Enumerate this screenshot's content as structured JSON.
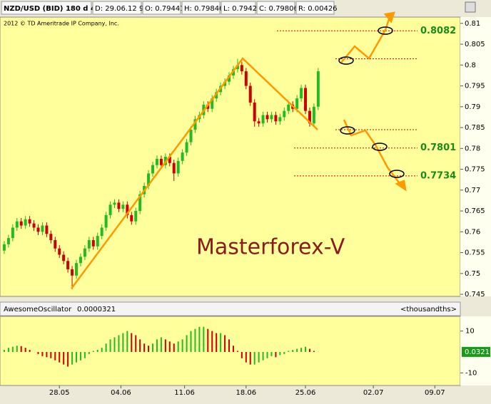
{
  "chart_data": [
    {
      "type": "candlestick",
      "header": [
        "NZD/USD (BID) 180 d 4h",
        "D: 29.06.12 9:00",
        "O: 0.79441",
        "H: 0.79846",
        "L: 0.7942",
        "C: 0.79806",
        "R: 0.00426"
      ],
      "copyright": "2012 © TD Ameritrade IP Company, Inc.",
      "watermark": "Masterforex-V",
      "x": [
        2,
        4,
        6,
        8,
        10,
        12,
        14,
        16,
        18,
        20,
        22,
        24,
        26,
        28,
        30,
        32,
        34,
        36,
        38,
        40,
        42,
        44,
        46,
        48,
        50,
        52,
        54,
        56,
        58,
        60,
        62,
        64,
        66,
        68,
        70,
        72,
        74,
        76,
        78,
        80,
        82,
        84,
        86,
        88,
        90,
        92,
        94,
        96,
        98,
        100,
        102,
        104,
        106,
        108,
        110,
        112,
        114,
        116,
        118,
        120,
        122,
        124,
        126,
        128,
        130,
        132,
        134,
        136,
        138,
        140,
        142,
        144,
        146,
        148,
        150
      ],
      "open": [
        0.7555,
        0.757,
        0.7585,
        0.761,
        0.7625,
        0.7615,
        0.763,
        0.762,
        0.761,
        0.76,
        0.7615,
        0.7595,
        0.758,
        0.756,
        0.7545,
        0.753,
        0.751,
        0.7495,
        0.7525,
        0.754,
        0.756,
        0.758,
        0.7565,
        0.759,
        0.761,
        0.764,
        0.7665,
        0.767,
        0.7655,
        0.7665,
        0.764,
        0.7625,
        0.765,
        0.769,
        0.771,
        0.774,
        0.776,
        0.7775,
        0.776,
        0.778,
        0.7765,
        0.774,
        0.777,
        0.779,
        0.7815,
        0.7845,
        0.787,
        0.788,
        0.7905,
        0.7895,
        0.792,
        0.7935,
        0.795,
        0.796,
        0.7975,
        0.799,
        0.8,
        0.7985,
        0.795,
        0.791,
        0.7865,
        0.786,
        0.788,
        0.787,
        0.788,
        0.7865,
        0.7875,
        0.789,
        0.7905,
        0.7895,
        0.792,
        0.7945,
        0.789,
        0.786,
        0.79
      ],
      "high": [
        0.7578,
        0.7593,
        0.7618,
        0.7633,
        0.7633,
        0.7638,
        0.7638,
        0.7628,
        0.7618,
        0.7623,
        0.7623,
        0.7603,
        0.7588,
        0.7568,
        0.7553,
        0.7538,
        0.7518,
        0.7533,
        0.7548,
        0.7568,
        0.7588,
        0.7588,
        0.7598,
        0.7618,
        0.7648,
        0.7673,
        0.7678,
        0.7678,
        0.7673,
        0.7673,
        0.7648,
        0.7658,
        0.7698,
        0.7718,
        0.7748,
        0.7768,
        0.7783,
        0.7783,
        0.7788,
        0.7788,
        0.7773,
        0.7778,
        0.7798,
        0.7823,
        0.7853,
        0.7878,
        0.7888,
        0.7913,
        0.7913,
        0.7928,
        0.7943,
        0.7958,
        0.7968,
        0.7983,
        0.7998,
        0.8015,
        0.8008,
        0.7993,
        0.7958,
        0.7918,
        0.7873,
        0.7888,
        0.7888,
        0.7888,
        0.7888,
        0.7883,
        0.7898,
        0.7913,
        0.7913,
        0.7928,
        0.7953,
        0.7953,
        0.7898,
        0.7908,
        0.7993
      ],
      "low": [
        0.7547,
        0.7562,
        0.7577,
        0.7602,
        0.7607,
        0.7607,
        0.7612,
        0.7602,
        0.7592,
        0.7592,
        0.7587,
        0.7572,
        0.7552,
        0.7537,
        0.7522,
        0.7502,
        0.7462,
        0.7487,
        0.7517,
        0.7532,
        0.7552,
        0.7557,
        0.7557,
        0.7582,
        0.7602,
        0.7632,
        0.7657,
        0.7647,
        0.7647,
        0.7632,
        0.7617,
        0.7617,
        0.7642,
        0.7682,
        0.7702,
        0.7732,
        0.7752,
        0.7752,
        0.7752,
        0.7757,
        0.7722,
        0.7732,
        0.7762,
        0.7782,
        0.7807,
        0.7837,
        0.7862,
        0.7872,
        0.7887,
        0.7887,
        0.7912,
        0.7927,
        0.7942,
        0.7952,
        0.7967,
        0.7982,
        0.7977,
        0.7942,
        0.7902,
        0.7852,
        0.7852,
        0.7852,
        0.7862,
        0.7862,
        0.7857,
        0.7857,
        0.7867,
        0.7882,
        0.7887,
        0.7887,
        0.7912,
        0.7882,
        0.7852,
        0.7852,
        0.7892
      ],
      "close": [
        0.757,
        0.7585,
        0.761,
        0.7625,
        0.7615,
        0.763,
        0.762,
        0.761,
        0.76,
        0.7615,
        0.7595,
        0.758,
        0.756,
        0.7545,
        0.753,
        0.751,
        0.7495,
        0.7525,
        0.754,
        0.756,
        0.758,
        0.7565,
        0.759,
        0.761,
        0.764,
        0.7665,
        0.767,
        0.7655,
        0.7665,
        0.764,
        0.7625,
        0.765,
        0.769,
        0.771,
        0.774,
        0.776,
        0.7775,
        0.776,
        0.778,
        0.7765,
        0.774,
        0.777,
        0.779,
        0.7815,
        0.7845,
        0.787,
        0.788,
        0.7905,
        0.7895,
        0.792,
        0.7935,
        0.795,
        0.796,
        0.7975,
        0.799,
        0.8,
        0.7985,
        0.795,
        0.791,
        0.7865,
        0.786,
        0.788,
        0.787,
        0.788,
        0.7865,
        0.7875,
        0.789,
        0.7905,
        0.7895,
        0.792,
        0.7945,
        0.789,
        0.786,
        0.79,
        0.7985
      ],
      "up_color": "#22bb22",
      "down_color": "#cc0000",
      "xlim": [
        0,
        217
      ],
      "ylim": [
        0.7445,
        0.8115
      ],
      "yticks": [
        0.745,
        0.75,
        0.755,
        0.76,
        0.765,
        0.77,
        0.775,
        0.78,
        0.785,
        0.79,
        0.795,
        0.8,
        0.805,
        0.81
      ],
      "xticks": [
        {
          "value": 28,
          "label": "28.05"
        },
        {
          "value": 57,
          "label": "04.06"
        },
        {
          "value": 87,
          "label": "11.06"
        },
        {
          "value": 116,
          "label": "18.06"
        },
        {
          "value": 144,
          "label": "25.06"
        },
        {
          "value": 176,
          "label": "02.07"
        },
        {
          "value": 205,
          "label": "09.07"
        }
      ],
      "levels": [
        {
          "value": 0.8082,
          "label": "0.8082"
        },
        {
          "value": 0.8015
        },
        {
          "value": 0.7845
        },
        {
          "value": 0.7801,
          "label": "0.7801"
        },
        {
          "value": 0.7734,
          "label": "0.7734"
        }
      ]
    },
    {
      "type": "oscillator",
      "name": "AwesomeOscillator",
      "current": "0.0000321",
      "units": "<thousandths>",
      "values": [
        1,
        2,
        2.5,
        3,
        2.8,
        2,
        1,
        0,
        -1,
        -2,
        -2.5,
        -3,
        -4,
        -5,
        -6,
        -7,
        -6,
        -5,
        -4,
        -3,
        -1,
        0.5,
        1,
        2,
        4,
        6,
        7,
        8,
        9,
        10,
        9,
        8,
        6,
        4,
        3,
        4,
        6,
        7,
        6,
        5,
        4,
        5,
        6,
        8,
        10,
        11,
        12,
        12,
        11,
        10,
        9,
        9,
        8,
        6,
        3,
        0.5,
        -3,
        -5,
        -6,
        -6,
        -5,
        -4,
        -3,
        -2,
        -2.5,
        -1.5,
        -1,
        0.5,
        1,
        1.5,
        2,
        2.5,
        1.5,
        0.5,
        0.0321
      ],
      "last_value": 0.0321,
      "ylim": [
        -16,
        17
      ],
      "yticks": [
        10,
        -10
      ]
    }
  ]
}
